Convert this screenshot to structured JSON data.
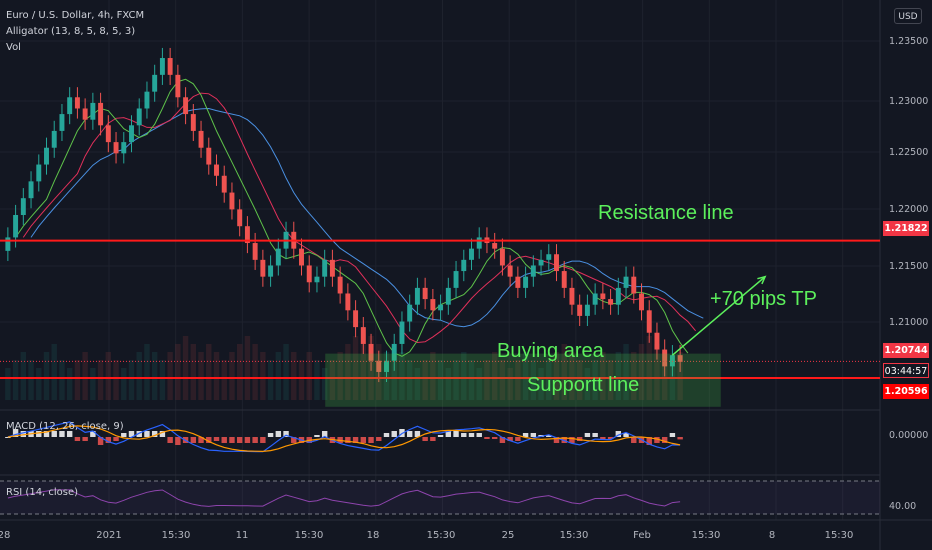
{
  "header": {
    "symbol": "Euro / U.S. Dollar, 4h, FXCM",
    "indicator_alligator": "Alligator (13, 8, 5, 8, 5, 3)",
    "indicator_vol": "Vol",
    "currency": "USD"
  },
  "price_axis": {
    "labels": [
      "1.23500",
      "1.23000",
      "1.22500",
      "1.22000",
      "1.21500",
      "1.21000"
    ],
    "current_price": "1.20744",
    "countdown": "03:44:57",
    "resistance_price": "1.21822",
    "support_price": "1.20596"
  },
  "macd_panel": {
    "label": "MACD (12, 26, close, 9)",
    "zero_label": "0.00000"
  },
  "rsi_panel": {
    "label": "RSI (14, close)",
    "value_label": "40.00"
  },
  "time_axis": {
    "labels": [
      "28",
      "2021",
      "15:30",
      "11",
      "15:30",
      "18",
      "15:30",
      "25",
      "15:30",
      "Feb",
      "15:30",
      "8",
      "15:30"
    ]
  },
  "annotations": {
    "resistance": "Resistance line",
    "buying": "Buying area",
    "support": "Supportt line",
    "target": "+70 pips TP"
  },
  "colors": {
    "background": "#131722",
    "bull_candle": "#26a69a",
    "bear_candle": "#ef5350",
    "level_line": "#ff1a1a",
    "zone_border": "#4cd14c",
    "annotation_text": "#5cf05c",
    "alligator_jaw": "#4a90e2",
    "alligator_teeth": "#e0305a",
    "alligator_lips": "#5ec24a",
    "macd_line": "#2962ff",
    "signal_line": "#ff9800",
    "rsi_line": "#8e44ad"
  },
  "chart_data": {
    "type": "line",
    "instrument": "EURUSD",
    "timeframe": "4h",
    "price_ylim": [
      1.204,
      1.237
    ],
    "resistance_level": 1.21822,
    "support_level": 1.20596,
    "buying_zone": [
      1.2048,
      1.2078
    ],
    "current_price": 1.20744,
    "closes": [
      1.2185,
      1.2205,
      1.222,
      1.2235,
      1.225,
      1.2265,
      1.228,
      1.2295,
      1.231,
      1.23,
      1.229,
      1.2305,
      1.2285,
      1.227,
      1.226,
      1.227,
      1.2285,
      1.23,
      1.2315,
      1.233,
      1.2345,
      1.233,
      1.231,
      1.2295,
      1.228,
      1.2265,
      1.225,
      1.224,
      1.2225,
      1.221,
      1.2195,
      1.218,
      1.2165,
      1.215,
      1.216,
      1.2175,
      1.219,
      1.2175,
      1.216,
      1.2145,
      1.215,
      1.2165,
      1.215,
      1.2135,
      1.212,
      1.2105,
      1.209,
      1.2075,
      1.2065,
      1.2075,
      1.209,
      1.211,
      1.2125,
      1.214,
      1.213,
      1.212,
      1.2125,
      1.214,
      1.2155,
      1.2165,
      1.2175,
      1.2185,
      1.218,
      1.2175,
      1.216,
      1.215,
      1.214,
      1.215,
      1.216,
      1.2165,
      1.217,
      1.2155,
      1.214,
      1.2125,
      1.2115,
      1.2125,
      1.2135,
      1.213,
      1.2125,
      1.214,
      1.215,
      1.2135,
      1.212,
      1.21,
      1.2085,
      1.207,
      1.208,
      1.2074
    ],
    "volume_rel": [
      0.4,
      0.5,
      0.6,
      0.5,
      0.4,
      0.6,
      0.7,
      0.5,
      0.4,
      0.5,
      0.6,
      0.4,
      0.5,
      0.6,
      0.5,
      0.4,
      0.5,
      0.6,
      0.7,
      0.6,
      0.5,
      0.6,
      0.7,
      0.8,
      0.7,
      0.6,
      0.7,
      0.6,
      0.5,
      0.6,
      0.7,
      0.8,
      0.7,
      0.6,
      0.5,
      0.6,
      0.7,
      0.6,
      0.5,
      0.6,
      0.5,
      0.4,
      0.5,
      0.6,
      0.7,
      0.8,
      0.9,
      0.8,
      0.7,
      0.6,
      0.5,
      0.6,
      0.5,
      0.4,
      0.5,
      0.6,
      0.5,
      0.4,
      0.5,
      0.6,
      0.5,
      0.4,
      0.5,
      0.6,
      0.5,
      0.4,
      0.5,
      0.6,
      0.5,
      0.4,
      0.5,
      0.6,
      0.7,
      0.6,
      0.5,
      0.4,
      0.5,
      0.6,
      0.5,
      0.6,
      0.7,
      0.6,
      0.7,
      0.8,
      0.7,
      0.6,
      0.5,
      0.6
    ],
    "target_arrow": {
      "from_index": 86,
      "from_price": 1.208,
      "to_index": 98,
      "to_price": 1.215
    }
  }
}
